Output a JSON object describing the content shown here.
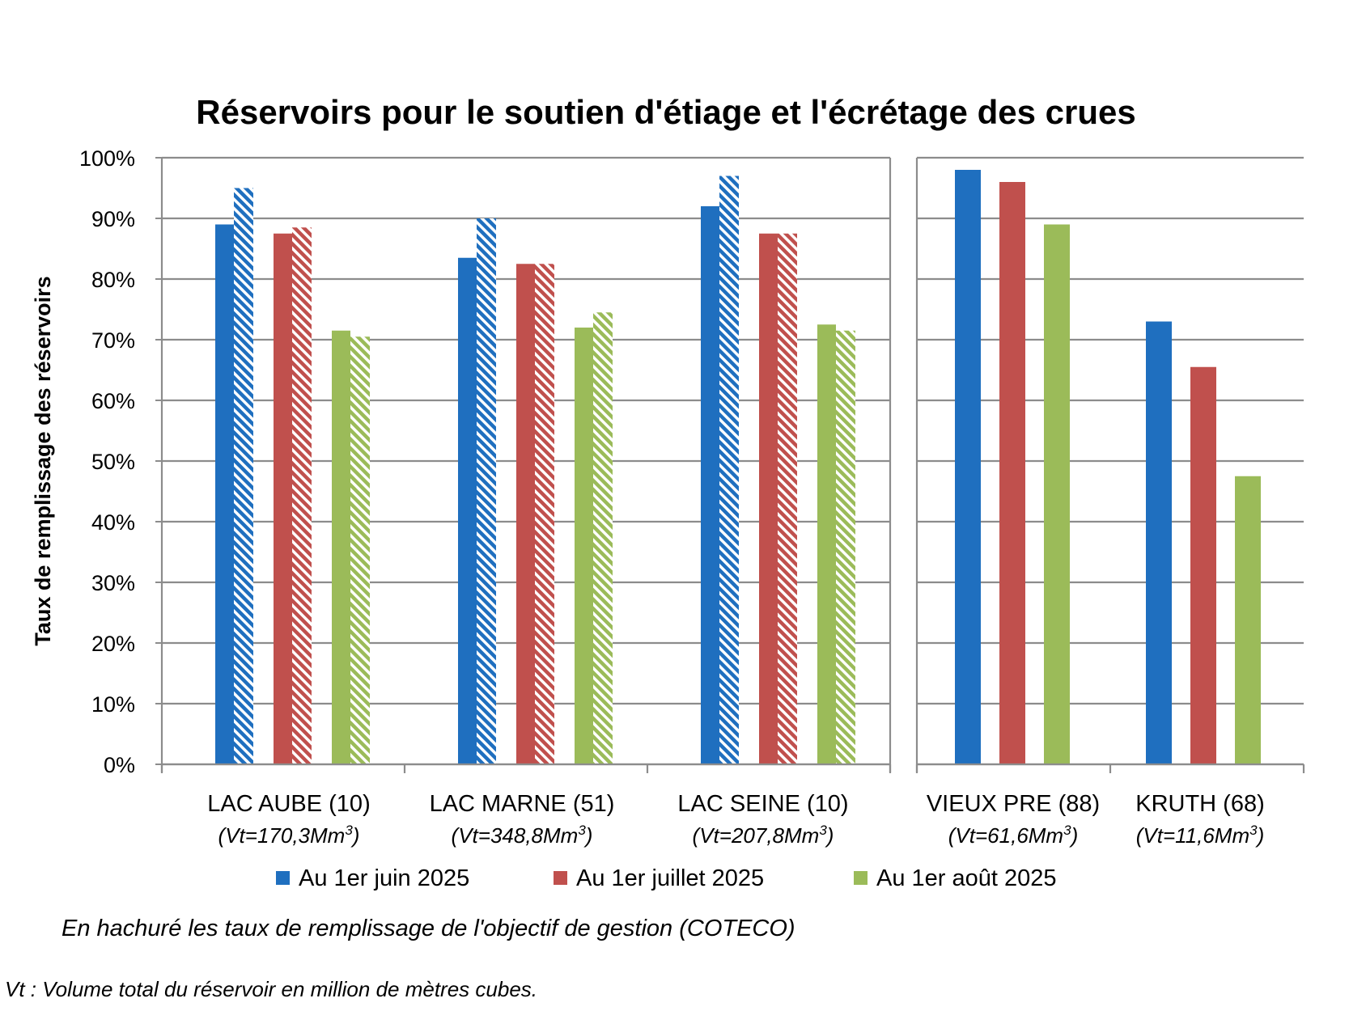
{
  "chart_data": {
    "type": "bar",
    "title": "Réservoirs pour le soutien d'étiage et l'écrétage des crues",
    "ylabel": "Taux de remplissage des réservoirs",
    "ylim": [
      0,
      100
    ],
    "yticks": [
      "0%",
      "10%",
      "20%",
      "30%",
      "40%",
      "50%",
      "60%",
      "70%",
      "80%",
      "90%",
      "100%"
    ],
    "grid": true,
    "legend_position": "bottom",
    "series": [
      {
        "name": "Au 1er juin 2025",
        "color": "#1F6FBF"
      },
      {
        "name": "Au 1er juillet 2025",
        "color": "#C0504D"
      },
      {
        "name": "Au 1er août 2025",
        "color": "#9BBB59"
      }
    ],
    "panels": [
      {
        "categories": [
          {
            "name": "LAC AUBE (10)",
            "volume": "(Vt=170,3Mm",
            "volume_unit_sup": "3",
            "volume_close": ")",
            "actual": [
              89,
              87.5,
              71.5
            ],
            "objective": [
              95,
              88.5,
              70.5
            ]
          },
          {
            "name": "LAC MARNE (51)",
            "volume": "(Vt=348,8Mm",
            "volume_unit_sup": "3",
            "volume_close": ")",
            "actual": [
              83.5,
              82.5,
              72
            ],
            "objective": [
              90,
              82.5,
              74.5
            ]
          },
          {
            "name": "LAC SEINE (10)",
            "volume": "(Vt=207,8Mm",
            "volume_unit_sup": "3",
            "volume_close": ")",
            "actual": [
              92,
              87.5,
              72.5
            ],
            "objective": [
              97,
              87.5,
              71.5
            ]
          }
        ]
      },
      {
        "categories": [
          {
            "name": "VIEUX PRE (88)",
            "volume": "(Vt=61,6Mm",
            "volume_unit_sup": "3",
            "volume_close": ")",
            "actual": [
              98,
              96,
              89
            ],
            "objective": null
          },
          {
            "name": "KRUTH (68)",
            "volume": "(Vt=11,6Mm",
            "volume_unit_sup": "3",
            "volume_close": ")",
            "actual": [
              73,
              65.5,
              47.5
            ],
            "objective": null
          }
        ]
      }
    ],
    "note": "En hachuré les taux de remplissage de l'objectif de gestion (COTECO)",
    "footnote": "Vt : Volume total du réservoir en million de mètres cubes."
  }
}
